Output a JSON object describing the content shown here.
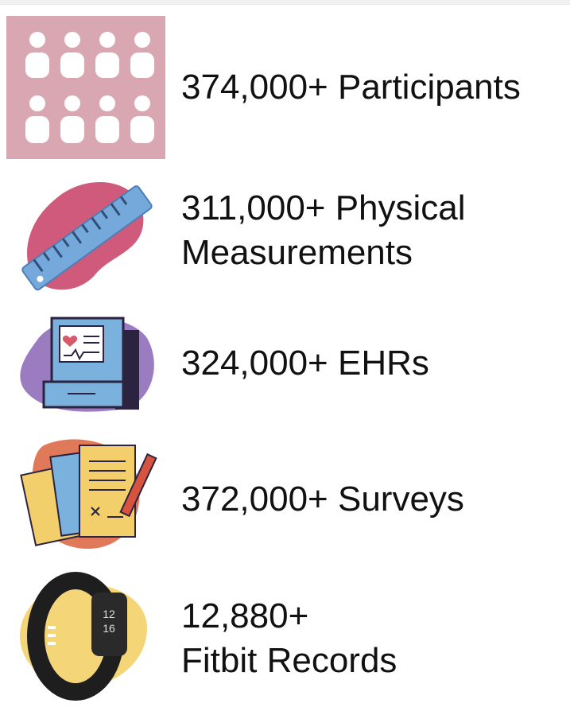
{
  "items": [
    {
      "lines": [
        "374,000+ Participants"
      ]
    },
    {
      "lines": [
        "311,000+ Physical",
        "Measurements"
      ]
    },
    {
      "lines": [
        "324,000+ EHRs"
      ]
    },
    {
      "lines": [
        "372,000+ Surveys"
      ]
    },
    {
      "lines": [
        "12,880+",
        "Fitbit Records"
      ]
    }
  ]
}
